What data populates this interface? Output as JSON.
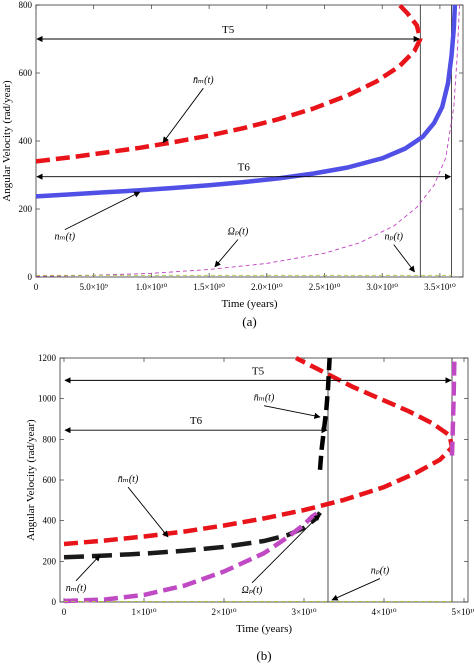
{
  "chart_data": [
    {
      "panel": "a",
      "caption": "(a)",
      "type": "line",
      "xlabel": "Time (years)",
      "ylabel": "Angular Velocity (rad/year)",
      "xlim": [
        0,
        37000000000.0
      ],
      "ylim": [
        0,
        800
      ],
      "xticks": [
        0,
        5000000000.0,
        10000000000.0,
        15000000000.0,
        20000000000.0,
        25000000000.0,
        30000000000.0,
        35000000000.0
      ],
      "xtick_labels": [
        "0",
        "5.0×10⁹",
        "1.0×10¹⁰",
        "1.5×10¹⁰",
        "2.0×10¹⁰",
        "2.5×10¹⁰",
        "3.0×10¹⁰",
        "3.5×10¹⁰"
      ],
      "yticks": [
        0,
        200,
        400,
        600,
        800
      ],
      "ytick_labels": [
        "0",
        "200",
        "400",
        "600",
        "800"
      ],
      "vlines": [
        33300000000.0,
        36000000000.0
      ],
      "dimensions": [
        {
          "label": "T5",
          "x_start": 0,
          "x_end": 33300000000.0,
          "y": 700
        },
        {
          "label": "T6",
          "x_start": 0,
          "x_end": 36000000000.0,
          "y": 295
        }
      ],
      "series": [
        {
          "id": "nm_bar",
          "color": "#e8141a",
          "style": "dashed-thick",
          "points": [
            [
              0,
              340
            ],
            [
              3000000000.0,
              352
            ],
            [
              6000000000.0,
              366
            ],
            [
              9000000000.0,
              380
            ],
            [
              12000000000.0,
              397
            ],
            [
              15000000000.0,
              416
            ],
            [
              18000000000.0,
              438
            ],
            [
              21000000000.0,
              464
            ],
            [
              24000000000.0,
              495
            ],
            [
              27000000000.0,
              534
            ],
            [
              29500000000.0,
              575
            ],
            [
              31500000000.0,
              620
            ],
            [
              32800000000.0,
              665
            ],
            [
              33300000000.0,
              700
            ],
            [
              33000000000.0,
              740
            ],
            [
              32200000000.0,
              775
            ],
            [
              31500000000.0,
              800
            ]
          ]
        },
        {
          "id": "nm",
          "color": "#5050e6",
          "style": "solid-thick",
          "points": [
            [
              0,
              237
            ],
            [
              3000000000.0,
              243
            ],
            [
              6000000000.0,
              249
            ],
            [
              9000000000.0,
              255
            ],
            [
              12000000000.0,
              262
            ],
            [
              15000000000.0,
              270
            ],
            [
              18000000000.0,
              279
            ],
            [
              21000000000.0,
              290
            ],
            [
              24000000000.0,
              304
            ],
            [
              27000000000.0,
              322
            ],
            [
              30000000000.0,
              349
            ],
            [
              32000000000.0,
              378
            ],
            [
              33500000000.0,
              412
            ],
            [
              34500000000.0,
              453
            ],
            [
              35200000000.0,
              500
            ],
            [
              35700000000.0,
              570
            ],
            [
              36000000000.0,
              650
            ],
            [
              36200000000.0,
              730
            ],
            [
              36300000000.0,
              800
            ]
          ]
        },
        {
          "id": "omega_p",
          "color": "#c040c0",
          "style": "dashed-thin",
          "points": [
            [
              0,
              2
            ],
            [
              5000000000.0,
              5
            ],
            [
              10000000000.0,
              11
            ],
            [
              15000000000.0,
              22
            ],
            [
              20000000000.0,
              40
            ],
            [
              25000000000.0,
              70
            ],
            [
              28000000000.0,
              100
            ],
            [
              31000000000.0,
              150
            ],
            [
              33000000000.0,
              205
            ],
            [
              34500000000.0,
              270
            ],
            [
              35500000000.0,
              350
            ],
            [
              36200000000.0,
              500
            ],
            [
              36500000000.0,
              650
            ],
            [
              36700000000.0,
              800
            ]
          ]
        },
        {
          "id": "np",
          "color": "#aac43a",
          "style": "dashed-thin",
          "points": [
            [
              0,
              5
            ],
            [
              36000000000.0,
              5
            ]
          ]
        }
      ],
      "annotations": [
        {
          "text": "n̄ₘ(t)",
          "tx": 14500000000.0,
          "ty": 570,
          "ax": 11000000000.0,
          "ay": 395
        },
        {
          "text": "nₘ(t)",
          "tx": 2500000000.0,
          "ty": 110,
          "ax": 9000000000.0,
          "ay": 250
        },
        {
          "text": "Ωₚ(t)",
          "tx": 17500000000.0,
          "ty": 125,
          "ax": 15500000000.0,
          "ay": 30
        },
        {
          "text": "nₚ(t)",
          "tx": 31000000000.0,
          "ty": 110,
          "ax": 32800000000.0,
          "ay": 15
        }
      ]
    },
    {
      "panel": "b",
      "caption": "(b)",
      "type": "line",
      "xlabel": "Time (years)",
      "ylabel": "Angular Velocity (rad/year)",
      "xlim": [
        -500000000.0,
        50500000000.0
      ],
      "ylim": [
        0,
        1200
      ],
      "xticks": [
        0,
        10000000000.0,
        20000000000.0,
        30000000000.0,
        40000000000.0,
        50000000000.0
      ],
      "xtick_labels": [
        "0",
        "1×10¹⁰",
        "2×10¹⁰",
        "3×10¹⁰",
        "4×10¹⁰",
        "5×10¹⁰"
      ],
      "yticks": [
        0,
        200,
        400,
        600,
        800,
        1000,
        1200
      ],
      "ytick_labels": [
        "0",
        "200",
        "400",
        "600",
        "800",
        "1000",
        "1200"
      ],
      "vlines": [
        33000000000.0,
        48500000000.0
      ],
      "dimensions": [
        {
          "label": "T5",
          "x_start": 0,
          "x_end": 48500000000.0,
          "y": 1090
        },
        {
          "label": "T6",
          "x_start": 0,
          "x_end": 33000000000.0,
          "y": 845
        }
      ],
      "series": [
        {
          "id": "nm_bar",
          "color": "#e8141a",
          "style": "dashed-thick",
          "points": [
            [
              0,
              285
            ],
            [
              5000000000.0,
              302
            ],
            [
              10000000000.0,
              322
            ],
            [
              15000000000.0,
              346
            ],
            [
              20000000000.0,
              376
            ],
            [
              25000000000.0,
              411
            ],
            [
              30000000000.0,
              452
            ],
            [
              35000000000.0,
              502
            ],
            [
              40000000000.0,
              565
            ],
            [
              44000000000.0,
              635
            ],
            [
              47000000000.0,
              700
            ],
            [
              48500000000.0,
              760
            ],
            [
              48200000000.0,
              820
            ],
            [
              46000000000.0,
              880
            ],
            [
              43000000000.0,
              940
            ],
            [
              39500000000.0,
              1000
            ],
            [
              36000000000.0,
              1060
            ],
            [
              33000000000.0,
              1120
            ],
            [
              30000000000.0,
              1180
            ],
            [
              29000000000.0,
              1200
            ]
          ]
        },
        {
          "id": "nm_upper",
          "color": "#000000",
          "style": "dashed-thick",
          "points": [
            [
              32000000000.0,
              650
            ],
            [
              32200000000.0,
              750
            ],
            [
              32500000000.0,
              850
            ],
            [
              32800000000.0,
              950
            ],
            [
              33000000000.0,
              1050
            ],
            [
              33200000000.0,
              1200
            ]
          ]
        },
        {
          "id": "nm",
          "color": "#1a1a1a",
          "style": "dashed-mixed",
          "points": [
            [
              0,
              220
            ],
            [
              5000000000.0,
              228
            ],
            [
              10000000000.0,
              238
            ],
            [
              15000000000.0,
              252
            ],
            [
              20000000000.0,
              271
            ],
            [
              25000000000.0,
              300
            ],
            [
              28000000000.0,
              330
            ],
            [
              30000000000.0,
              365
            ],
            [
              31500000000.0,
              410
            ],
            [
              32000000000.0,
              440
            ]
          ]
        },
        {
          "id": "omega_p",
          "color": "#c04ac4",
          "style": "dashed-thick",
          "points": [
            [
              0,
              5
            ],
            [
              5000000000.0,
              12
            ],
            [
              10000000000.0,
              35
            ],
            [
              15000000000.0,
              80
            ],
            [
              20000000000.0,
              150
            ],
            [
              25000000000.0,
              240
            ],
            [
              28000000000.0,
              320
            ],
            [
              30000000000.0,
              380
            ],
            [
              31000000000.0,
              420
            ],
            [
              32000000000.0,
              445
            ]
          ]
        },
        {
          "id": "np_branch",
          "color": "#c04ac4",
          "style": "dashed-thick",
          "points": [
            [
              48500000000.0,
              720
            ],
            [
              48600000000.0,
              850
            ],
            [
              48700000000.0,
              1000
            ],
            [
              48800000000.0,
              1200
            ]
          ]
        },
        {
          "id": "np",
          "color": "#aac43a",
          "style": "dashed-thin",
          "points": [
            [
              0,
              3
            ],
            [
              48500000000.0,
              3
            ]
          ]
        }
      ],
      "annotations": [
        {
          "text": "n̄ₘ(t)",
          "tx": 8000000000.0,
          "ty": 590,
          "ax": 13000000000.0,
          "ay": 320
        },
        {
          "text": "nₘ(t)",
          "tx": 1500000000.0,
          "ty": 55,
          "ax": 4500000000.0,
          "ay": 230
        },
        {
          "text": "n̄ₘ(t)",
          "tx": 25000000000.0,
          "ty": 990,
          "ax": 32000000000.0,
          "ay": 910
        },
        {
          "text": "Ωₚ(t)",
          "tx": 23500000000.0,
          "ty": 45,
          "ax": 32000000000.0,
          "ay": 430
        },
        {
          "text": "nₚ(t)",
          "tx": 39500000000.0,
          "ty": 140,
          "ax": 33500000000.0,
          "ay": 10
        }
      ]
    }
  ]
}
